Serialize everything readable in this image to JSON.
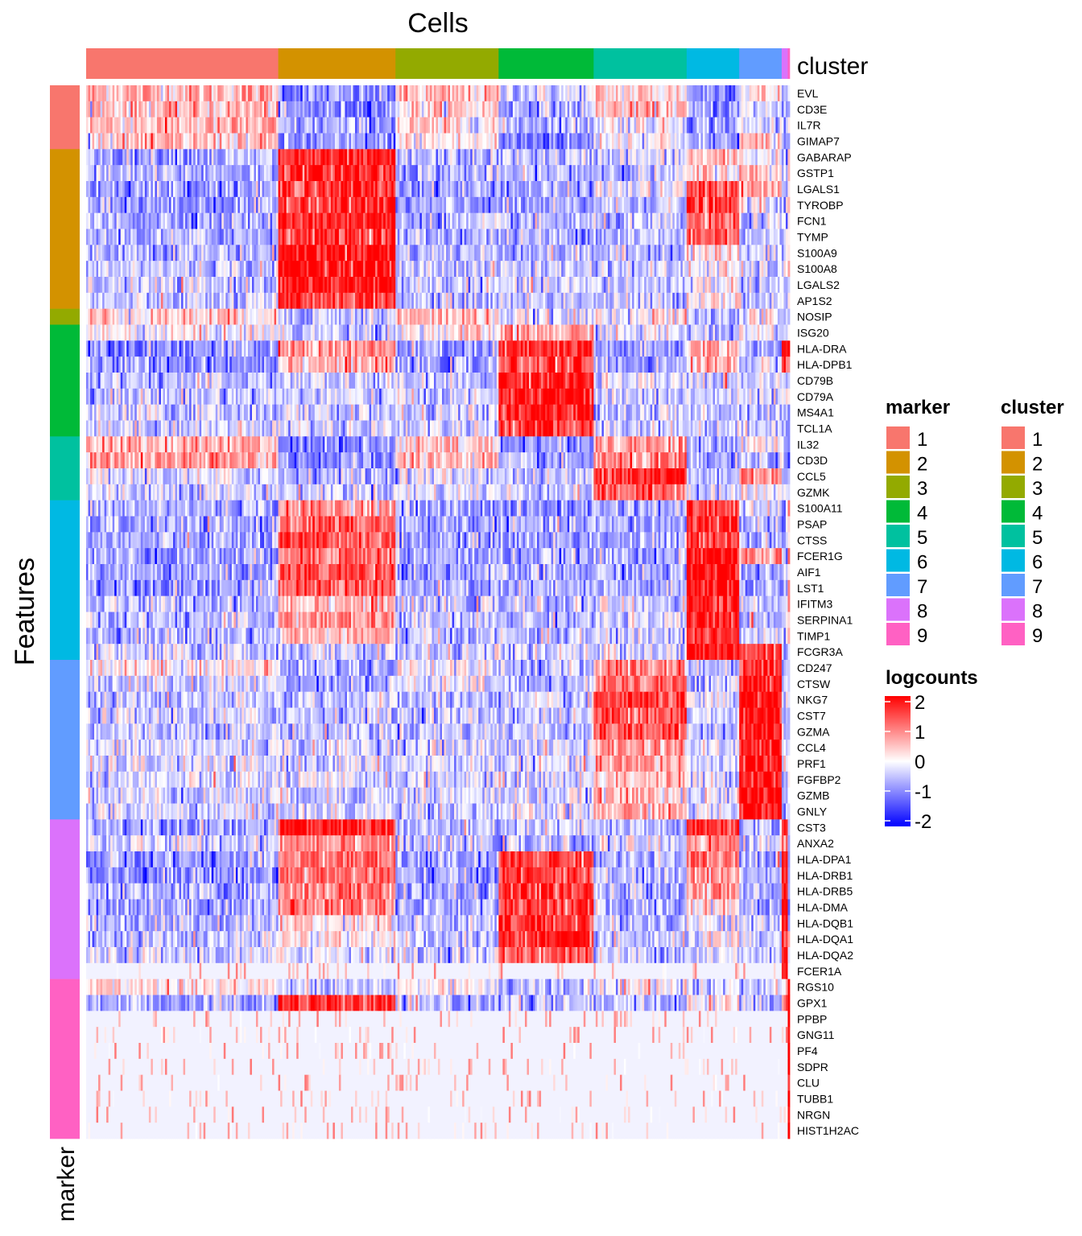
{
  "chart_data": {
    "type": "heatmap",
    "title": "Cells",
    "ylabel": "Features",
    "column_annotation": {
      "name": "cluster",
      "levels": [
        "1",
        "2",
        "3",
        "4",
        "5",
        "6",
        "7",
        "8",
        "9"
      ],
      "cells_per_level": [
        95,
        58,
        51,
        47,
        46,
        26,
        21,
        3,
        1
      ]
    },
    "row_annotation": {
      "name": "marker",
      "levels": [
        "1",
        "2",
        "3",
        "4",
        "5",
        "6",
        "7",
        "8",
        "9"
      ]
    },
    "colors": {
      "levels": [
        "#F8766D",
        "#D39200",
        "#93AA00",
        "#00BA38",
        "#00C19F",
        "#00B9E3",
        "#619CFF",
        "#DB72FB",
        "#FF61C3"
      ],
      "low": "#0000FF",
      "mid": "#FFFFFF",
      "high": "#FF0000"
    },
    "legends": {
      "marker": {
        "title": "marker",
        "labels": [
          "1",
          "2",
          "3",
          "4",
          "5",
          "6",
          "7",
          "8",
          "9"
        ]
      },
      "cluster": {
        "title": "cluster",
        "labels": [
          "1",
          "2",
          "3",
          "4",
          "5",
          "6",
          "7",
          "8",
          "9"
        ]
      },
      "logcounts": {
        "title": "logcounts",
        "breaks": [
          2,
          1,
          0,
          -1,
          -2
        ],
        "range": [
          -2,
          2
        ]
      }
    },
    "rows": [
      {
        "gene": "EVL",
        "marker": 1,
        "means": [
          0.6,
          -0.9,
          0.4,
          -0.3,
          0.3,
          -0.8,
          0.2,
          -0.6,
          -0.5
        ]
      },
      {
        "gene": "CD3E",
        "marker": 1,
        "means": [
          0.5,
          -0.9,
          0.3,
          -0.6,
          0.5,
          -0.8,
          -0.3,
          -0.6,
          -0.5
        ]
      },
      {
        "gene": "IL7R",
        "marker": 1,
        "means": [
          0.5,
          -0.7,
          0.2,
          -0.5,
          0.0,
          -0.7,
          -0.3,
          -0.6,
          -0.5
        ]
      },
      {
        "gene": "GIMAP7",
        "marker": 1,
        "means": [
          0.4,
          -0.9,
          0.1,
          -1.0,
          0.1,
          -0.8,
          0.3,
          -0.6,
          -0.5
        ]
      },
      {
        "gene": "GABARAP",
        "marker": 2,
        "means": [
          -0.6,
          1.6,
          -0.6,
          -0.5,
          -0.3,
          0.4,
          0.0,
          -0.5,
          0.5
        ]
      },
      {
        "gene": "GSTP1",
        "marker": 2,
        "means": [
          -0.6,
          1.7,
          -0.6,
          -0.6,
          -0.5,
          0.3,
          0.4,
          -0.5,
          0.3
        ]
      },
      {
        "gene": "LGALS1",
        "marker": 2,
        "means": [
          -0.7,
          1.6,
          -0.7,
          -0.7,
          -0.2,
          1.4,
          0.6,
          -0.5,
          0.3
        ]
      },
      {
        "gene": "TYROBP",
        "marker": 2,
        "means": [
          -0.8,
          1.6,
          -0.8,
          -0.8,
          -0.4,
          1.4,
          -0.1,
          -0.6,
          0.2
        ]
      },
      {
        "gene": "FCN1",
        "marker": 2,
        "means": [
          -0.6,
          1.8,
          -0.6,
          -0.6,
          -0.6,
          1.0,
          -0.5,
          -0.6,
          0.0
        ]
      },
      {
        "gene": "TYMP",
        "marker": 2,
        "means": [
          -0.6,
          1.6,
          -0.6,
          -0.6,
          -0.5,
          1.3,
          -0.4,
          -0.6,
          0.0
        ]
      },
      {
        "gene": "S100A9",
        "marker": 2,
        "means": [
          -0.5,
          2.0,
          -0.5,
          -0.5,
          -0.5,
          0.2,
          -0.4,
          -0.5,
          0.0
        ]
      },
      {
        "gene": "S100A8",
        "marker": 2,
        "means": [
          -0.4,
          2.0,
          -0.4,
          -0.4,
          -0.4,
          0.0,
          -0.4,
          -0.4,
          0.0
        ]
      },
      {
        "gene": "LGALS2",
        "marker": 2,
        "means": [
          -0.4,
          1.8,
          -0.4,
          -0.4,
          -0.4,
          0.0,
          -0.4,
          -0.4,
          0.0
        ]
      },
      {
        "gene": "AP1S2",
        "marker": 2,
        "means": [
          -0.5,
          1.5,
          -0.5,
          -0.4,
          -0.5,
          0.3,
          -0.4,
          -0.5,
          0.0
        ]
      },
      {
        "gene": "NOSIP",
        "marker": 3,
        "means": [
          0.4,
          -0.4,
          0.5,
          -0.3,
          0.1,
          -0.6,
          0.0,
          -0.5,
          -0.3
        ]
      },
      {
        "gene": "ISG20",
        "marker": 4,
        "means": [
          0.0,
          -0.4,
          0.1,
          0.6,
          -0.2,
          -0.5,
          0.0,
          -0.4,
          0.0
        ]
      },
      {
        "gene": "HLA-DRA",
        "marker": 4,
        "means": [
          -0.8,
          0.8,
          -0.8,
          1.5,
          -0.8,
          0.7,
          -0.6,
          1.5,
          1.5
        ]
      },
      {
        "gene": "HLA-DPB1",
        "marker": 4,
        "means": [
          -0.8,
          0.6,
          -0.8,
          1.4,
          -0.7,
          0.6,
          -0.4,
          1.5,
          1.5
        ]
      },
      {
        "gene": "CD79B",
        "marker": 4,
        "means": [
          -0.5,
          -0.4,
          -0.5,
          1.8,
          -0.3,
          -0.3,
          -0.2,
          -0.3,
          -0.3
        ]
      },
      {
        "gene": "CD79A",
        "marker": 4,
        "means": [
          -0.4,
          -0.4,
          -0.4,
          1.9,
          -0.4,
          -0.4,
          -0.4,
          -0.4,
          -0.4
        ]
      },
      {
        "gene": "MS4A1",
        "marker": 4,
        "means": [
          -0.4,
          -0.4,
          -0.4,
          1.7,
          -0.4,
          -0.4,
          -0.4,
          -0.4,
          -0.4
        ]
      },
      {
        "gene": "TCL1A",
        "marker": 4,
        "means": [
          -0.3,
          -0.3,
          -0.3,
          1.5,
          -0.3,
          -0.3,
          -0.3,
          -0.3,
          -0.3
        ]
      },
      {
        "gene": "IL32",
        "marker": 5,
        "means": [
          0.6,
          -0.9,
          0.3,
          -0.8,
          0.8,
          -0.8,
          0.2,
          -0.8,
          -0.8
        ]
      },
      {
        "gene": "CD3D",
        "marker": 5,
        "means": [
          0.7,
          -0.9,
          0.5,
          -0.8,
          0.8,
          -0.8,
          -0.6,
          -0.8,
          -0.8
        ]
      },
      {
        "gene": "CCL5",
        "marker": 5,
        "means": [
          -0.3,
          -0.5,
          -0.2,
          -0.5,
          1.8,
          -0.5,
          1.0,
          -0.5,
          -0.5
        ]
      },
      {
        "gene": "GZMK",
        "marker": 5,
        "means": [
          -0.3,
          -0.3,
          -0.2,
          -0.3,
          1.2,
          -0.3,
          -0.1,
          -0.3,
          -0.3
        ]
      },
      {
        "gene": "S100A11",
        "marker": 6,
        "means": [
          -0.6,
          0.8,
          -0.7,
          -0.9,
          -0.6,
          1.5,
          -0.4,
          -0.6,
          0.3
        ]
      },
      {
        "gene": "PSAP",
        "marker": 6,
        "means": [
          -0.7,
          1.2,
          -0.7,
          -0.7,
          -0.7,
          1.6,
          -0.5,
          -0.5,
          0.3
        ]
      },
      {
        "gene": "CTSS",
        "marker": 6,
        "means": [
          -0.7,
          1.3,
          -0.7,
          -0.7,
          -0.7,
          1.6,
          -0.5,
          -0.5,
          0.3
        ]
      },
      {
        "gene": "FCER1G",
        "marker": 6,
        "means": [
          -0.7,
          1.2,
          -0.7,
          -0.7,
          -0.6,
          1.9,
          0.8,
          -0.5,
          0.5
        ]
      },
      {
        "gene": "AIF1",
        "marker": 6,
        "means": [
          -0.7,
          1.4,
          -0.7,
          -0.7,
          -0.7,
          1.9,
          -0.6,
          -0.5,
          0.5
        ]
      },
      {
        "gene": "LST1",
        "marker": 6,
        "means": [
          -0.7,
          1.3,
          -0.7,
          -0.7,
          -0.7,
          1.9,
          -0.6,
          -0.5,
          0.5
        ]
      },
      {
        "gene": "IFITM3",
        "marker": 6,
        "means": [
          -0.5,
          0.6,
          -0.5,
          -0.5,
          -0.3,
          1.7,
          -0.3,
          -0.4,
          0.0
        ]
      },
      {
        "gene": "SERPINA1",
        "marker": 6,
        "means": [
          -0.5,
          0.8,
          -0.5,
          -0.5,
          -0.4,
          1.7,
          -0.4,
          -0.4,
          0.0
        ]
      },
      {
        "gene": "TIMP1",
        "marker": 6,
        "means": [
          -0.5,
          0.5,
          -0.5,
          -0.5,
          -0.4,
          1.6,
          -0.4,
          -0.4,
          0.0
        ]
      },
      {
        "gene": "FCGR3A",
        "marker": 6,
        "means": [
          -0.4,
          -0.4,
          -0.4,
          -0.4,
          -0.2,
          1.8,
          1.6,
          -0.4,
          -0.4
        ]
      },
      {
        "gene": "CD247",
        "marker": 7,
        "means": [
          0.2,
          -0.6,
          0.0,
          -0.6,
          1.0,
          -0.5,
          1.6,
          -0.5,
          -0.5
        ]
      },
      {
        "gene": "CTSW",
        "marker": 7,
        "means": [
          -0.3,
          -0.6,
          -0.2,
          -0.6,
          1.2,
          -0.5,
          1.9,
          -0.5,
          -0.5
        ]
      },
      {
        "gene": "NKG7",
        "marker": 7,
        "means": [
          -0.5,
          -0.4,
          -0.5,
          -0.5,
          1.5,
          -0.4,
          1.9,
          -0.5,
          -0.5
        ]
      },
      {
        "gene": "CST7",
        "marker": 7,
        "means": [
          -0.4,
          -0.4,
          -0.4,
          -0.4,
          1.4,
          -0.4,
          1.9,
          -0.4,
          -0.4
        ]
      },
      {
        "gene": "GZMA",
        "marker": 7,
        "means": [
          -0.4,
          -0.4,
          -0.4,
          -0.4,
          1.3,
          -0.4,
          1.9,
          -0.4,
          -0.4
        ]
      },
      {
        "gene": "CCL4",
        "marker": 7,
        "means": [
          -0.3,
          -0.3,
          -0.3,
          -0.3,
          0.8,
          -0.3,
          1.8,
          -0.3,
          -0.3
        ]
      },
      {
        "gene": "PRF1",
        "marker": 7,
        "means": [
          -0.3,
          -0.3,
          -0.3,
          -0.3,
          0.7,
          -0.3,
          1.9,
          -0.3,
          -0.3
        ]
      },
      {
        "gene": "FGFBP2",
        "marker": 7,
        "means": [
          -0.3,
          -0.3,
          -0.3,
          -0.3,
          0.5,
          -0.3,
          1.9,
          -0.3,
          -0.3
        ]
      },
      {
        "gene": "GZMB",
        "marker": 7,
        "means": [
          -0.3,
          -0.3,
          -0.3,
          -0.3,
          0.5,
          -0.3,
          1.9,
          -0.3,
          -0.3
        ]
      },
      {
        "gene": "GNLY",
        "marker": 7,
        "means": [
          -0.3,
          -0.3,
          -0.3,
          -0.3,
          0.6,
          -0.3,
          1.9,
          -0.3,
          -0.3
        ]
      },
      {
        "gene": "CST3",
        "marker": 8,
        "means": [
          -0.6,
          1.8,
          -0.6,
          -0.4,
          -0.6,
          1.5,
          -0.5,
          1.9,
          -0.6
        ]
      },
      {
        "gene": "ANXA2",
        "marker": 8,
        "means": [
          -0.3,
          1.0,
          -0.5,
          -0.6,
          -0.3,
          0.9,
          -0.3,
          1.0,
          -0.6
        ]
      },
      {
        "gene": "HLA-DPA1",
        "marker": 8,
        "means": [
          -0.8,
          1.1,
          -0.8,
          1.5,
          -0.6,
          0.9,
          -0.6,
          1.9,
          -0.6
        ]
      },
      {
        "gene": "HLA-DRB1",
        "marker": 8,
        "means": [
          -0.8,
          1.1,
          -0.8,
          1.5,
          -0.6,
          0.8,
          -0.6,
          1.9,
          -0.6
        ]
      },
      {
        "gene": "HLA-DRB5",
        "marker": 8,
        "means": [
          -0.7,
          1.0,
          -0.7,
          1.5,
          -0.6,
          0.7,
          -0.6,
          1.9,
          -0.6
        ]
      },
      {
        "gene": "HLA-DMA",
        "marker": 8,
        "means": [
          -0.6,
          1.0,
          -0.6,
          1.5,
          -0.6,
          0.3,
          -0.6,
          1.9,
          -0.6
        ]
      },
      {
        "gene": "HLA-DQB1",
        "marker": 8,
        "means": [
          -0.5,
          0.3,
          -0.5,
          1.6,
          -0.5,
          -0.1,
          -0.5,
          1.9,
          -0.5
        ]
      },
      {
        "gene": "HLA-DQA1",
        "marker": 8,
        "means": [
          -0.5,
          0.2,
          -0.5,
          1.6,
          -0.5,
          -0.1,
          -0.5,
          1.9,
          -0.5
        ]
      },
      {
        "gene": "HLA-DQA2",
        "marker": 8,
        "means": [
          -0.4,
          -0.1,
          -0.4,
          1.3,
          -0.4,
          -0.3,
          -0.4,
          1.9,
          -0.4
        ]
      },
      {
        "gene": "FCER1A",
        "marker": 8,
        "means": [
          -0.1,
          -0.1,
          -0.1,
          -0.1,
          -0.1,
          -0.1,
          -0.1,
          1.9,
          -0.1
        ]
      },
      {
        "gene": "RGS10",
        "marker": 9,
        "means": [
          0.3,
          -0.5,
          0.1,
          -0.6,
          0.0,
          -0.4,
          -0.3,
          0.3,
          1.9
        ]
      },
      {
        "gene": "GPX1",
        "marker": 9,
        "means": [
          -0.6,
          1.5,
          -0.6,
          -0.6,
          -0.6,
          0.1,
          -0.4,
          0.8,
          1.9
        ]
      },
      {
        "gene": "PPBP",
        "marker": 9,
        "means": [
          -0.1,
          -0.1,
          -0.1,
          -0.1,
          -0.1,
          -0.1,
          -0.1,
          -0.1,
          2.0
        ]
      },
      {
        "gene": "GNG11",
        "marker": 9,
        "means": [
          -0.1,
          -0.1,
          -0.1,
          -0.1,
          -0.1,
          -0.1,
          -0.1,
          -0.1,
          2.0
        ]
      },
      {
        "gene": "PF4",
        "marker": 9,
        "means": [
          -0.1,
          -0.1,
          -0.1,
          -0.1,
          -0.1,
          -0.1,
          -0.1,
          -0.1,
          2.0
        ]
      },
      {
        "gene": "SDPR",
        "marker": 9,
        "means": [
          -0.1,
          -0.1,
          -0.1,
          -0.1,
          -0.1,
          -0.1,
          -0.1,
          -0.1,
          2.0
        ]
      },
      {
        "gene": "CLU",
        "marker": 9,
        "means": [
          -0.1,
          -0.1,
          -0.1,
          -0.1,
          -0.1,
          -0.1,
          -0.1,
          -0.1,
          2.0
        ]
      },
      {
        "gene": "TUBB1",
        "marker": 9,
        "means": [
          -0.1,
          -0.1,
          -0.1,
          -0.1,
          -0.1,
          -0.1,
          -0.1,
          -0.1,
          2.0
        ]
      },
      {
        "gene": "NRGN",
        "marker": 9,
        "means": [
          -0.1,
          -0.1,
          -0.1,
          -0.1,
          -0.1,
          -0.1,
          -0.1,
          -0.1,
          2.0
        ]
      },
      {
        "gene": "HIST1H2AC",
        "marker": 9,
        "means": [
          -0.1,
          -0.1,
          -0.1,
          -0.1,
          -0.1,
          -0.1,
          -0.1,
          -0.1,
          2.0
        ]
      }
    ]
  }
}
